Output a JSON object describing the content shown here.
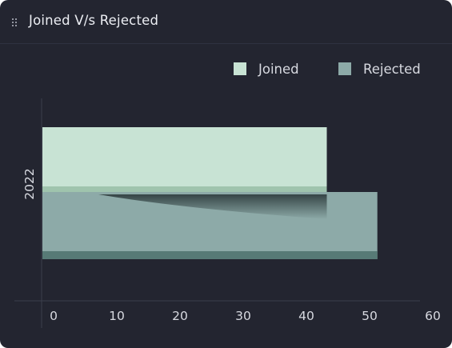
{
  "widget": {
    "title": "Joined V/s Rejected"
  },
  "chart_data": {
    "type": "bar",
    "orientation": "horizontal",
    "categories": [
      "2022"
    ],
    "series": [
      {
        "name": "Joined",
        "values": [
          45
        ],
        "color": "#c8e3d4"
      },
      {
        "name": "Rejected",
        "values": [
          53
        ],
        "color": "#8daaa8"
      }
    ],
    "xlim": [
      0,
      60
    ],
    "xticks": [
      "0",
      "10",
      "20",
      "30",
      "40",
      "50",
      "60"
    ],
    "legend_position": "top-right",
    "grid": false
  },
  "colors": {
    "background": "#232530",
    "axis": "#3b3e4c",
    "text": "#d7d9e0",
    "joined_edge": "#9fc4ad",
    "rejected_edge": "#577a76"
  }
}
